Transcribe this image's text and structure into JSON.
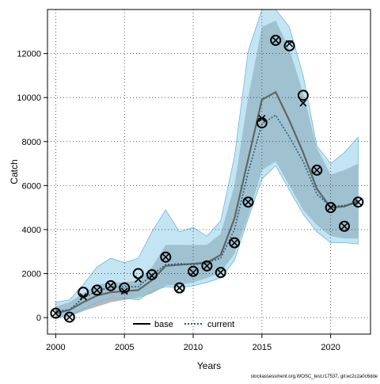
{
  "chart_data": {
    "type": "line",
    "xlabel": "Years",
    "ylabel": "Catch",
    "xlim": [
      1999.4,
      2022.9
    ],
    "ylim": [
      -750,
      14000
    ],
    "xticks": [
      2000,
      2005,
      2010,
      2015,
      2020
    ],
    "yticks": [
      0,
      2000,
      4000,
      6000,
      8000,
      10000,
      12000
    ],
    "grid": true,
    "legend_position": "bottom-center",
    "footer": "stockassessment.org,WOSC_test,r17537, git:ec2c2a0c6dde",
    "x": [
      2000,
      2001,
      2002,
      2003,
      2004,
      2005,
      2006,
      2007,
      2008,
      2009,
      2010,
      2011,
      2012,
      2013,
      2014,
      2015,
      2016,
      2017,
      2018,
      2019,
      2020,
      2021,
      2022
    ],
    "observed_circles": [
      200,
      20,
      1150,
      1250,
      1450,
      1350,
      2000,
      1950,
      2750,
      1350,
      2100,
      2350,
      2050,
      3400,
      5250,
      8850,
      12600,
      12350,
      10100,
      6700,
      5000,
      4150,
      5250
    ],
    "observed_crosses": [
      200,
      20,
      950,
      1250,
      1450,
      1200,
      1750,
      1900,
      2750,
      1350,
      2050,
      2350,
      2050,
      3400,
      5250,
      9050,
      12600,
      12450,
      9750,
      6700,
      5000,
      4150,
      5250
    ],
    "series": [
      {
        "name": "base",
        "color": "#555555",
        "band_color": "#a0a0a0",
        "dash": "solid",
        "values": [
          200,
          350,
          700,
          1000,
          1150,
          1200,
          1250,
          1700,
          2350,
          2400,
          2450,
          2500,
          2850,
          4500,
          7200,
          9900,
          10250,
          8950,
          7500,
          5850,
          5000,
          5050,
          5300
        ],
        "lower": [
          0,
          50,
          300,
          500,
          700,
          800,
          900,
          1100,
          1450,
          1500,
          1600,
          1800,
          2050,
          2900,
          4600,
          6700,
          7100,
          6000,
          4900,
          4200,
          3700,
          3600,
          3600
        ],
        "upper": [
          500,
          700,
          1100,
          1500,
          1600,
          1600,
          1700,
          2300,
          3300,
          3300,
          3300,
          3300,
          3800,
          6000,
          10000,
          13200,
          13500,
          12200,
          10200,
          7700,
          6500,
          6700,
          7000
        ]
      },
      {
        "name": "current",
        "color": "#1f5f7a",
        "band_color": "#87cbe8",
        "dash": "dotted",
        "values": [
          300,
          350,
          900,
          1200,
          1400,
          1400,
          1400,
          1950,
          2400,
          2450,
          2400,
          2500,
          2700,
          4000,
          6600,
          8800,
          9200,
          8200,
          7100,
          5600,
          5050,
          5100,
          5200
        ],
        "lower": [
          0,
          50,
          400,
          700,
          900,
          900,
          800,
          1200,
          1400,
          1350,
          1450,
          1600,
          1800,
          2600,
          4500,
          6300,
          6900,
          5800,
          4700,
          3900,
          3400,
          3400,
          3350
        ],
        "upper": [
          700,
          800,
          1500,
          2300,
          2700,
          2500,
          2700,
          3900,
          4900,
          3900,
          4100,
          3700,
          4400,
          7300,
          12100,
          14000,
          14000,
          13200,
          11000,
          7800,
          7000,
          7500,
          8200
        ]
      }
    ]
  }
}
